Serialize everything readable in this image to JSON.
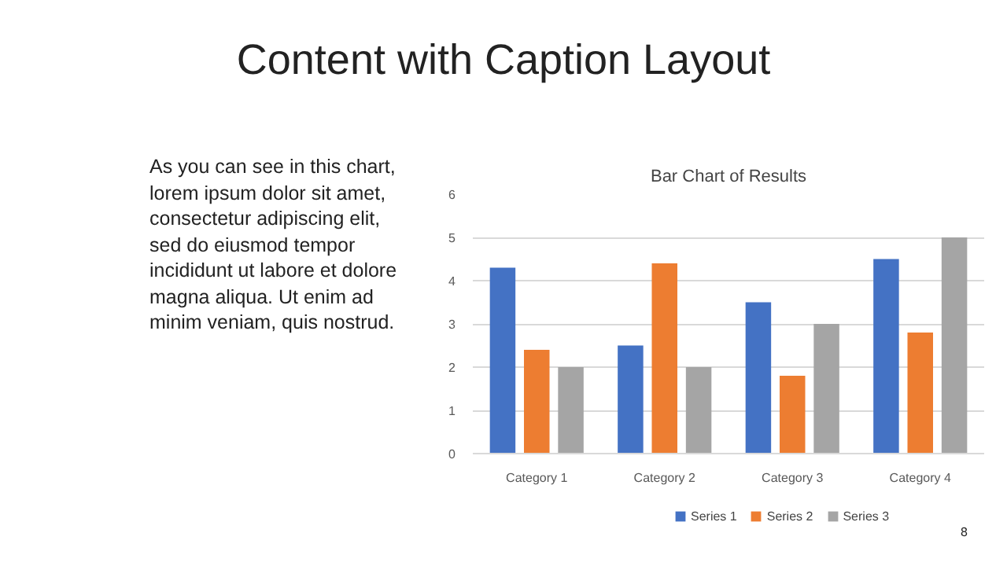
{
  "chart_data": {
    "type": "bar",
    "title": "Bar Chart of Results",
    "annotations": [
      "Content with Caption Layout",
      "As you can see in this chart,\nlorem ipsum dolor sit amet,\nconsectetur adipiscing elit,\nsed do eiusmod tempor\nincididunt ut labore et dolore\nmagna aliqua. Ut enim ad\nminim veniam, quis nostrud.",
      "8"
    ],
    "categories": [
      "Category 1",
      "Category 2",
      "Category 3",
      "Category 4"
    ],
    "series": [
      {
        "name": "Series 1",
        "color": "#4472c4",
        "values": [
          4.3,
          2.5,
          3.5,
          4.5
        ]
      },
      {
        "name": "Series 2",
        "color": "#ed7d31",
        "values": [
          2.4,
          4.4,
          1.8,
          2.8
        ]
      },
      {
        "name": "Series 3",
        "color": "#a5a5a5",
        "values": [
          2,
          2,
          3,
          5
        ]
      }
    ],
    "ylim": [
      0,
      6
    ],
    "yticks": [
      0,
      1,
      2,
      3,
      4,
      5,
      6
    ],
    "grid": "y",
    "legend": "bottom"
  }
}
